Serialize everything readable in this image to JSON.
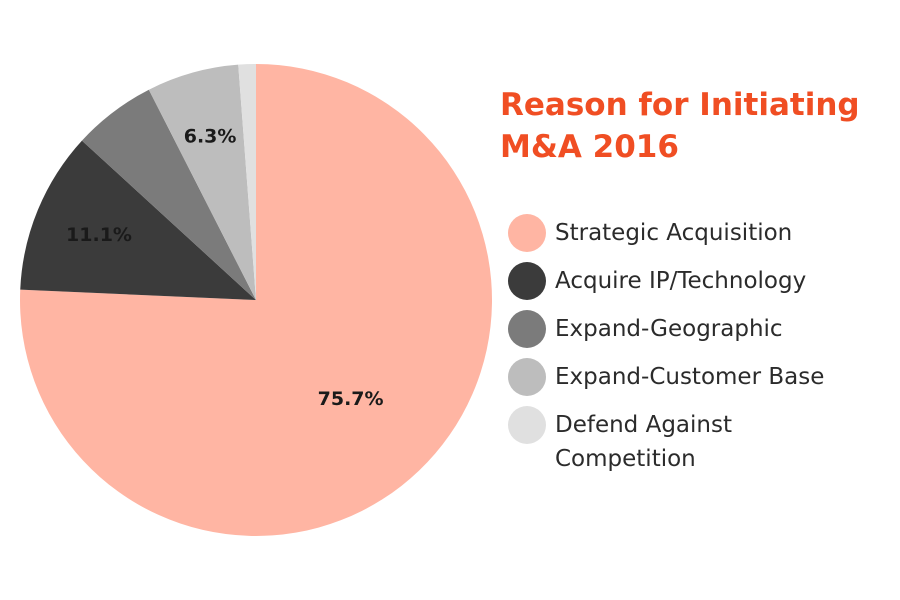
{
  "chart_data": {
    "type": "pie",
    "title": "Reason for Initiating M&A 2016",
    "title_lines": [
      "Reason for Initiating",
      "M&A 2016"
    ],
    "title_color": "#f04e23",
    "legend_position": "right",
    "series": [
      {
        "name": "Strategic Acquisition",
        "value": 75.7,
        "label": "75.7%",
        "color": "#ffb5a3"
      },
      {
        "name": "Acquire IP/Technology",
        "value": 11.1,
        "label": "11.1%",
        "color": "#3b3b3b"
      },
      {
        "name": "Expand-Geographic",
        "value": 5.7,
        "label": "",
        "color": "#7b7b7b"
      },
      {
        "name": "Expand-Customer Base",
        "value": 6.3,
        "label": "6.3%",
        "color": "#bdbdbd"
      },
      {
        "name": "Defend Against Competition",
        "value": 1.2,
        "label": "",
        "color": "#e0e0e0"
      }
    ],
    "legend": [
      {
        "lines": [
          "Strategic Acquisition"
        ]
      },
      {
        "lines": [
          "Acquire IP/Technology"
        ]
      },
      {
        "lines": [
          "Expand-Geographic"
        ]
      },
      {
        "lines": [
          "Expand-Customer Base"
        ]
      },
      {
        "lines": [
          "Defend Against",
          "Competition"
        ]
      }
    ]
  }
}
